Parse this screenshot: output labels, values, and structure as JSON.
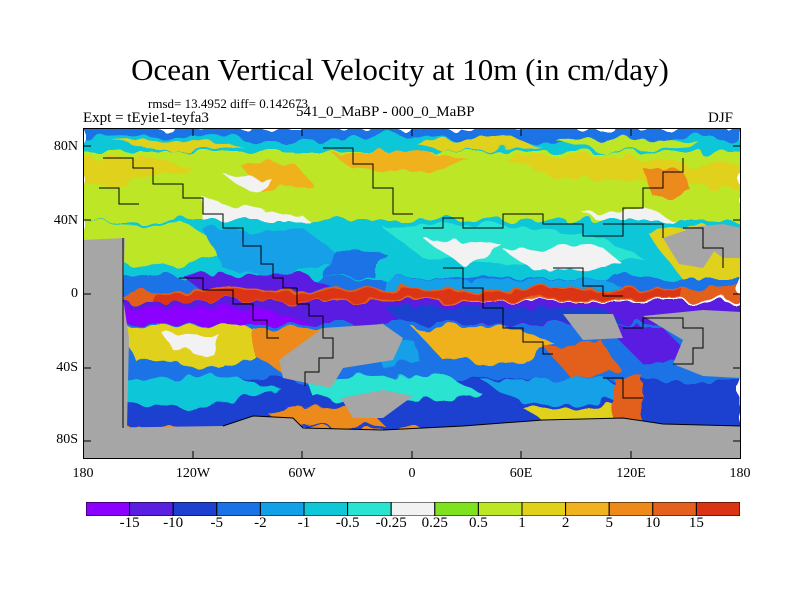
{
  "plot": {
    "title": "Ocean Vertical Velocity at 10m (in cm/day)",
    "stats": "rmsd= 13.4952 diff= 0.142673",
    "experiment": "Expt = tEyie1-teyfa3",
    "difference_label": "541_0_MaBP - 000_0_MaBP",
    "season": "DJF"
  },
  "axes": {
    "lat_ticks": [
      "80N",
      "40N",
      "0",
      "40S",
      "80S"
    ],
    "lon_ticks": [
      "180",
      "120W",
      "60W",
      "0",
      "60E",
      "120E",
      "180"
    ]
  },
  "colorbar": {
    "colors": [
      "#8b00ff",
      "#5a1fe0",
      "#1e40d0",
      "#1a73e6",
      "#12a0e8",
      "#10c7d8",
      "#2ae3d0",
      "#f2f2f2",
      "#7ee31e",
      "#bde626",
      "#e0d11a",
      "#f0b21e",
      "#ed8a1a",
      "#e3611c",
      "#db3414"
    ],
    "labels": [
      "-15",
      "-10",
      "-5",
      "-2",
      "-1",
      "-0.5",
      "-0.25",
      "0.25",
      "0.5",
      "1",
      "2",
      "5",
      "10",
      "15"
    ]
  },
  "colors": {
    "land": "#a6a6a6",
    "coast": "#000000"
  }
}
